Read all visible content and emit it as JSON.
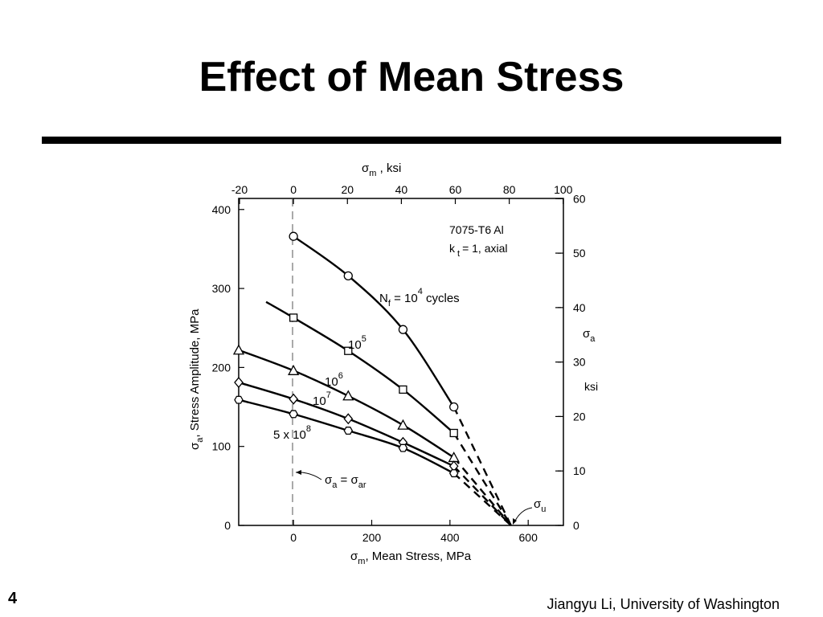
{
  "slide": {
    "title": "Effect of Mean Stress",
    "number": "4",
    "footer": "Jiangyu Li, University of Washington"
  },
  "chart_data": {
    "type": "line",
    "material": "7075-T6  Al",
    "condition_kt": "k",
    "condition_sub": "t",
    "condition_rest": "= 1,  axial",
    "x_top_label": {
      "sym": "σ",
      "sub": "m",
      "rest": " ,  ksi"
    },
    "x_bottom_label": {
      "sym": "σ",
      "sub": "m",
      "rest": ",  Mean  Stress,   MPa"
    },
    "y_left_label": {
      "sym": "σ",
      "sub": "a",
      "rest": ", Stress    Amplitude, MPa"
    },
    "y_right_label": {
      "sym": "σ",
      "sub": "a",
      "unit": "ksi"
    },
    "x_bottom_ticks": [
      "0",
      "200",
      "400",
      "600"
    ],
    "x_top_ticks": [
      "-20",
      "0",
      "20",
      "40",
      "60",
      "80",
      "100"
    ],
    "y_left_ticks": [
      "0",
      "100",
      "200",
      "300",
      "400"
    ],
    "y_right_ticks": [
      "0",
      "10",
      "20",
      "30",
      "40",
      "50",
      "60"
    ],
    "xlim_MPa": [
      -140,
      690
    ],
    "ylim_MPa": [
      0,
      414
    ],
    "grid": false,
    "series": [
      {
        "name": "N",
        "name_sub": "f",
        "name_rest": " = 10",
        "name_sup": "4",
        "name_tail": " cycles",
        "marker": "circle",
        "points": [
          [
            0,
            366
          ],
          [
            140,
            316
          ],
          [
            280,
            248
          ],
          [
            410,
            150
          ]
        ],
        "extension": [
          [
            556,
            0
          ]
        ]
      },
      {
        "name": "10",
        "name_sup": "5",
        "marker": "square",
        "points": [
          [
            0,
            263
          ],
          [
            140,
            221
          ],
          [
            280,
            172
          ],
          [
            410,
            117
          ]
        ],
        "lead_in": [
          [
            -70,
            283
          ]
        ],
        "extension": [
          [
            556,
            0
          ]
        ]
      },
      {
        "name": "10",
        "name_sup": "6",
        "marker": "triangle",
        "points": [
          [
            -140,
            222
          ],
          [
            0,
            196
          ],
          [
            140,
            164
          ],
          [
            280,
            127
          ],
          [
            410,
            86
          ]
        ],
        "extension": [
          [
            556,
            0
          ]
        ]
      },
      {
        "name": "10",
        "name_sup": "7",
        "marker": "diamond",
        "points": [
          [
            -140,
            181
          ],
          [
            0,
            160
          ],
          [
            140,
            135
          ],
          [
            280,
            105
          ],
          [
            410,
            75
          ]
        ],
        "extension": [
          [
            556,
            0
          ]
        ]
      },
      {
        "name": "5 x 10",
        "name_sup": "8",
        "marker": "hexagon",
        "points": [
          [
            -140,
            159
          ],
          [
            0,
            141
          ],
          [
            140,
            120
          ],
          [
            280,
            98
          ],
          [
            410,
            66
          ]
        ],
        "extension": [
          [
            556,
            0
          ]
        ]
      }
    ],
    "annotations": {
      "sigma_a_eq": {
        "sym": "σ",
        "sub": "a",
        "eq": " = σ",
        "sub2": "ar"
      },
      "sigma_u": {
        "sym": "σ",
        "sub": "u"
      }
    },
    "ultimate_strength_MPa": 556
  }
}
